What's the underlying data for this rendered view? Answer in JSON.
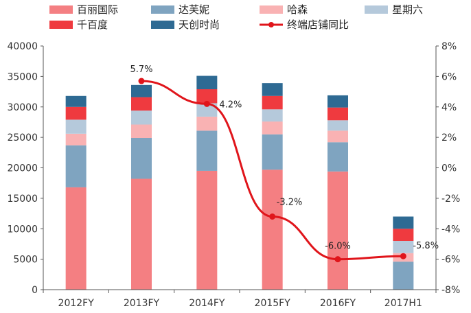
{
  "chart_data": {
    "type": "bar",
    "stacked": true,
    "categories": [
      "2012FY",
      "2013FY",
      "2014FY",
      "2015FY",
      "2016FY",
      "2017H1"
    ],
    "series": [
      {
        "name": "百丽国际",
        "color": "#F47F82",
        "values": [
          16800,
          18200,
          19500,
          19700,
          19400,
          0
        ]
      },
      {
        "name": "达芙妮",
        "color": "#7FA4C0",
        "values": [
          6900,
          6700,
          6600,
          5800,
          4800,
          4600
        ]
      },
      {
        "name": "哈森",
        "color": "#F9B2B3",
        "values": [
          1900,
          2200,
          2300,
          2100,
          1900,
          1400
        ]
      },
      {
        "name": "星期六",
        "color": "#B5C9DB",
        "values": [
          2300,
          2300,
          2200,
          2000,
          1700,
          2000
        ]
      },
      {
        "name": "千百度",
        "color": "#EF3A3F",
        "values": [
          2100,
          2200,
          2300,
          2200,
          2100,
          2000
        ]
      },
      {
        "name": "天创时尚",
        "color": "#2E6A93",
        "values": [
          1800,
          2000,
          2200,
          2100,
          2000,
          2000
        ]
      }
    ],
    "line_series": {
      "name": "终端店铺同比",
      "color": "#E0151B",
      "values": [
        null,
        5.7,
        4.2,
        -3.2,
        -6.0,
        -5.8
      ],
      "labels": [
        "",
        "5.7%",
        "4.2%",
        "-3.2%",
        "-6.0%",
        "-5.8%"
      ]
    },
    "y_left": {
      "min": 0,
      "max": 40000,
      "step": 5000,
      "ticks": [
        "0",
        "5000",
        "10000",
        "15000",
        "20000",
        "25000",
        "30000",
        "35000",
        "40000"
      ]
    },
    "y_right": {
      "min": -8,
      "max": 8,
      "step": 2,
      "ticks": [
        "-8%",
        "-6%",
        "-4%",
        "-2%",
        "0%",
        "2%",
        "4%",
        "6%",
        "8%"
      ]
    },
    "legend_position": "top",
    "grid": false
  }
}
